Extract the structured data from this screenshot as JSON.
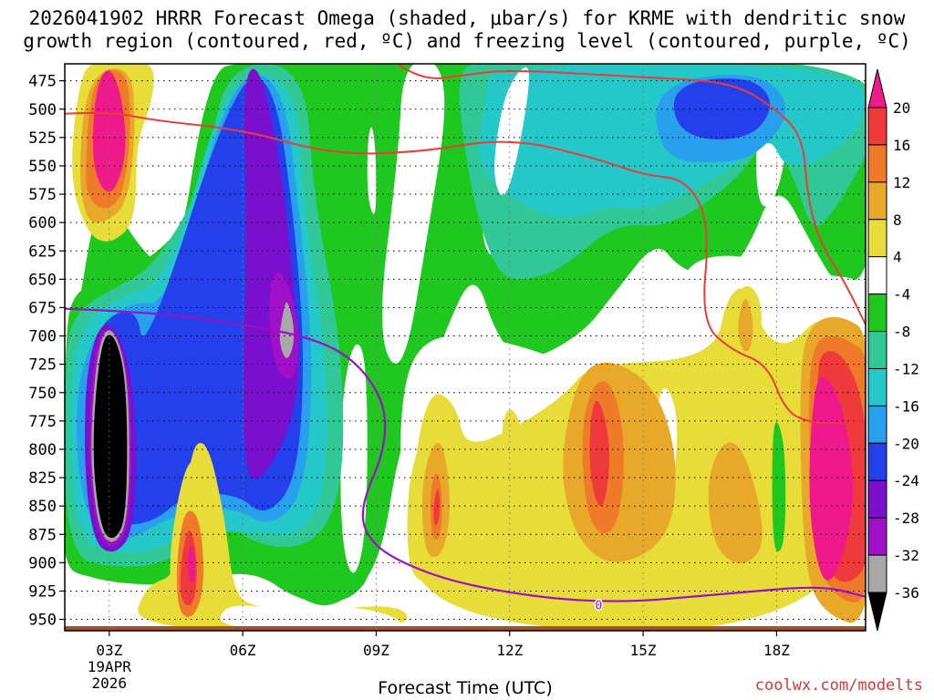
{
  "title": {
    "line1": "2026041902 HRRR Forecast Omega (shaded, μbar/s) for KRME with dendritic snow",
    "line2": "growth region (contoured, red, ºC) and freezing level (contoured, purple, ºC)"
  },
  "x_axis_title": "Forecast Time (UTC)",
  "watermark": "coolwx.com/modelts",
  "colors": {
    "pink": "#ee1a8c",
    "red": "#ee3a3a",
    "orange": "#ee7a2a",
    "gold": "#e8a82a",
    "yellow": "#e8dc38",
    "white": "#ffffff",
    "green": "#1ec81e",
    "teal_green": "#30c896",
    "cyan": "#24c8c8",
    "sky": "#28a0ee",
    "blue": "#2440ea",
    "violet": "#7a10ce",
    "purple": "#a010c8",
    "gray": "#a8a8a8",
    "black": "#000000",
    "dgz_line": "#ee3a3a",
    "freezing_line": "#9a10c8",
    "ground": "#a0522d"
  },
  "chart_data": {
    "type": "heatmap",
    "title": "2026041902 HRRR Forecast Omega (shaded, μbar/s) for KRME with dendritic snow growth region (contoured, red, ºC) and freezing level (contoured, purple, ºC)",
    "xlabel": "Forecast Time (UTC)",
    "ylabel": "",
    "x_range_hours_utc": [
      2,
      20
    ],
    "y_range_hpa": [
      460,
      960
    ],
    "y_ticks": [
      475,
      500,
      525,
      550,
      575,
      600,
      625,
      650,
      675,
      700,
      725,
      750,
      775,
      800,
      825,
      850,
      875,
      900,
      925,
      950
    ],
    "x_ticks": [
      {
        "hour": 3,
        "label": "03Z",
        "sub1": "19APR",
        "sub2": "2026"
      },
      {
        "hour": 6,
        "label": "06Z",
        "sub1": "",
        "sub2": ""
      },
      {
        "hour": 9,
        "label": "09Z",
        "sub1": "",
        "sub2": ""
      },
      {
        "hour": 12,
        "label": "12Z",
        "sub1": "",
        "sub2": ""
      },
      {
        "hour": 15,
        "label": "15Z",
        "sub1": "",
        "sub2": ""
      },
      {
        "hour": 18,
        "label": "18Z",
        "sub1": "",
        "sub2": ""
      }
    ],
    "grid": true,
    "colorbar": {
      "labels": [
        20,
        16,
        12,
        8,
        4,
        -4,
        -8,
        -12,
        -16,
        -20,
        -24,
        -28,
        -32,
        -36
      ],
      "bins": [
        {
          "range": "> 20",
          "color": "#ee1a8c"
        },
        {
          "range": "16 to 20",
          "color": "#ee3a3a"
        },
        {
          "range": "12 to 16",
          "color": "#ee7a2a"
        },
        {
          "range": "8 to 12",
          "color": "#e8a82a"
        },
        {
          "range": "4 to 8",
          "color": "#e8dc38"
        },
        {
          "range": "-4 to 4",
          "color": "#ffffff"
        },
        {
          "range": "-8 to -4",
          "color": "#1ec81e"
        },
        {
          "range": "-12 to -8",
          "color": "#30c896"
        },
        {
          "range": "-16 to -12",
          "color": "#24c8c8"
        },
        {
          "range": "-20 to -16",
          "color": "#28a0ee"
        },
        {
          "range": "-24 to -20",
          "color": "#2440ea"
        },
        {
          "range": "-28 to -24",
          "color": "#7a10ce"
        },
        {
          "range": "-32 to -28",
          "color": "#a010c8"
        },
        {
          "range": "-36 to -32",
          "color": "#a8a8a8"
        },
        {
          "range": "< -36",
          "color": "#000000"
        }
      ]
    },
    "freezing_level": {
      "label": "0",
      "points": [
        [
          2.0,
          676
        ],
        [
          4.0,
          679
        ],
        [
          6.0,
          690
        ],
        [
          7.5,
          701
        ],
        [
          8.5,
          720
        ],
        [
          9.2,
          758
        ],
        [
          9.2,
          800
        ],
        [
          8.7,
          845
        ],
        [
          8.7,
          872
        ],
        [
          9.3,
          896
        ],
        [
          11.0,
          921
        ],
        [
          14.0,
          937
        ],
        [
          17.0,
          927
        ],
        [
          19.0,
          920
        ],
        [
          20.0,
          930
        ]
      ]
    },
    "dgz_upper": {
      "points": [
        [
          2.0,
          504
        ],
        [
          3.0,
          502
        ],
        [
          4.0,
          510
        ],
        [
          6.0,
          518
        ],
        [
          8.0,
          540
        ],
        [
          10.0,
          538
        ],
        [
          12.0,
          525
        ],
        [
          14.0,
          544
        ],
        [
          15.0,
          558
        ],
        [
          16.0,
          562
        ],
        [
          16.5,
          602
        ],
        [
          16.3,
          688
        ],
        [
          17.0,
          713
        ],
        [
          17.8,
          725
        ],
        [
          18.2,
          767
        ],
        [
          18.8,
          777
        ],
        [
          19.4,
          777
        ],
        [
          20.0,
          775
        ]
      ]
    },
    "dgz_lower": {
      "points": [
        [
          9.4,
          458
        ],
        [
          10.0,
          475
        ],
        [
          11.0,
          470
        ],
        [
          12.0,
          465
        ],
        [
          15.0,
          472
        ],
        [
          17.0,
          476
        ],
        [
          18.0,
          500
        ],
        [
          18.6,
          525
        ],
        [
          18.7,
          580
        ],
        [
          19.0,
          620
        ],
        [
          19.5,
          650
        ],
        [
          20.0,
          690
        ]
      ]
    },
    "regions": [
      {
        "name": "teal_upper",
        "values": "-16 to -12",
        "points": [
          [
            11.5,
            460
          ],
          [
            20.0,
            460
          ],
          [
            20.0,
            520
          ],
          [
            18.3,
            560
          ],
          [
            17.8,
            520
          ],
          [
            17.3,
            545
          ],
          [
            15.3,
            590
          ],
          [
            14.2,
            585
          ],
          [
            13.2,
            600
          ],
          [
            11.8,
            575
          ],
          [
            11.2,
            540
          ],
          [
            11.5,
            490
          ]
        ]
      },
      {
        "name": "blue_upper",
        "values": "-24 to -16",
        "points": [
          [
            15.6,
            478
          ],
          [
            17.4,
            470
          ],
          [
            18.0,
            495
          ],
          [
            17.4,
            528
          ],
          [
            15.8,
            525
          ]
        ]
      },
      {
        "name": "yellow_low",
        "values": "4 to 8",
        "points": [
          [
            9.8,
            960
          ],
          [
            20.0,
            960
          ],
          [
            20.0,
            700
          ],
          [
            19.0,
            680
          ],
          [
            18.3,
            710
          ],
          [
            17.7,
            700
          ],
          [
            17.4,
            655
          ],
          [
            16.9,
            662
          ],
          [
            16.6,
            720
          ],
          [
            13.8,
            725
          ],
          [
            13.3,
            750
          ],
          [
            12.2,
            780
          ],
          [
            11.0,
            800
          ],
          [
            10.8,
            760
          ],
          [
            10.2,
            745
          ],
          [
            9.8,
            820
          ]
        ]
      },
      {
        "name": "orange_red_core_14Z",
        "values": "> 12",
        "points": [
          [
            14.0,
            750
          ],
          [
            14.3,
            800
          ],
          [
            14.1,
            860
          ],
          [
            13.8,
            830
          ],
          [
            13.8,
            770
          ]
        ]
      },
      {
        "name": "pink_core_19Z",
        "values": "> 20",
        "points": [
          [
            19.0,
            728
          ],
          [
            19.5,
            760
          ],
          [
            19.8,
            840
          ],
          [
            19.4,
            910
          ],
          [
            19.0,
            920
          ],
          [
            18.7,
            850
          ],
          [
            18.8,
            760
          ]
        ]
      },
      {
        "name": "black_core_03Z",
        "values": "< -36",
        "points": [
          [
            2.6,
            800
          ],
          [
            2.8,
            705
          ],
          [
            3.1,
            695
          ],
          [
            3.4,
            740
          ],
          [
            3.4,
            860
          ],
          [
            3.1,
            882
          ],
          [
            2.8,
            870
          ]
        ]
      },
      {
        "name": "pink_upper_03Z",
        "values": "> 20",
        "points": [
          [
            2.6,
            540
          ],
          [
            2.7,
            480
          ],
          [
            3.0,
            460
          ],
          [
            3.3,
            490
          ],
          [
            3.4,
            540
          ],
          [
            3.1,
            575
          ],
          [
            2.8,
            570
          ]
        ]
      },
      {
        "name": "violet_07Z",
        "values": "-32 to -24",
        "points": [
          [
            6.0,
            470
          ],
          [
            6.4,
            460
          ],
          [
            6.9,
            560
          ],
          [
            7.2,
            680
          ],
          [
            7.3,
            740
          ],
          [
            6.9,
            800
          ],
          [
            6.1,
            840
          ],
          [
            6.0,
            750
          ],
          [
            6.1,
            600
          ]
        ]
      },
      {
        "name": "gray_07Z",
        "values": "-36 to -32",
        "points": [
          [
            6.9,
            680
          ],
          [
            7.0,
            665
          ],
          [
            7.2,
            700
          ],
          [
            7.0,
            725
          ],
          [
            6.8,
            705
          ]
        ]
      },
      {
        "name": "red_05Z",
        "values": "> 16",
        "points": [
          [
            4.6,
            900
          ],
          [
            4.8,
            862
          ],
          [
            5.0,
            900
          ],
          [
            4.9,
            940
          ],
          [
            4.6,
            935
          ]
        ]
      }
    ]
  }
}
